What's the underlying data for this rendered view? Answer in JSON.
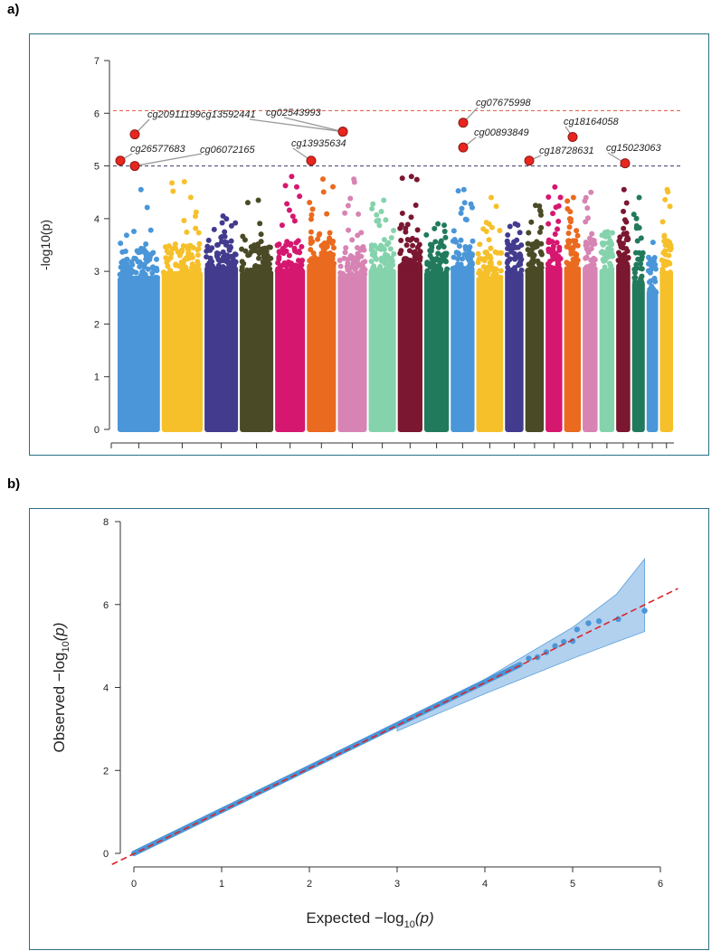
{
  "panels": [
    {
      "tag": "a)"
    },
    {
      "tag": "b)"
    }
  ],
  "chart_data": [
    {
      "type": "scatter",
      "subtype": "manhattan",
      "ylabel": "-log10(p)",
      "xlabel": "",
      "ylim": [
        0,
        7
      ],
      "yticks": [
        "0",
        "1",
        "2",
        "3",
        "4",
        "5",
        "6",
        "7"
      ],
      "thresholds": [
        {
          "y": 6.05,
          "color": "#d9573e",
          "style": "dashed"
        },
        {
          "y": 5.0,
          "color": "#3d3d6b",
          "style": "dashed"
        }
      ],
      "chromosomes": [
        {
          "color": "#4a96d8",
          "base": 3.15,
          "top": 4.55
        },
        {
          "color": "#f6c02a",
          "base": 3.25,
          "top": 4.7
        },
        {
          "color": "#423b8e",
          "base": 3.35,
          "top": 4.05
        },
        {
          "color": "#4a4a26",
          "base": 3.25,
          "top": 4.35
        },
        {
          "color": "#d6176f",
          "base": 3.3,
          "top": 4.8
        },
        {
          "color": "#ea6a1f",
          "base": 3.4,
          "top": 4.75
        },
        {
          "color": "#d784b4",
          "base": 3.2,
          "top": 4.75
        },
        {
          "color": "#85d3ad",
          "base": 3.3,
          "top": 4.35
        },
        {
          "color": "#7b1730",
          "base": 3.4,
          "top": 4.8
        },
        {
          "color": "#227a5c",
          "base": 3.25,
          "top": 3.9
        },
        {
          "color": "#4a96d8",
          "base": 3.35,
          "top": 4.55
        },
        {
          "color": "#f6c02a",
          "base": 3.15,
          "top": 4.4
        },
        {
          "color": "#423b8e",
          "base": 3.25,
          "top": 3.9
        },
        {
          "color": "#4a4a26",
          "base": 3.3,
          "top": 4.25
        },
        {
          "color": "#d6176f",
          "base": 3.35,
          "top": 4.6
        },
        {
          "color": "#ea6a1f",
          "base": 3.35,
          "top": 4.4
        },
        {
          "color": "#d784b4",
          "base": 3.35,
          "top": 4.5
        },
        {
          "color": "#85d3ad",
          "base": 3.3,
          "top": 3.75
        },
        {
          "color": "#7b1730",
          "base": 3.4,
          "top": 4.55
        },
        {
          "color": "#227a5c",
          "base": 3.05,
          "top": 4.4
        },
        {
          "color": "#4a96d8",
          "base": 2.9,
          "top": 3.55
        },
        {
          "color": "#f6c02a",
          "base": 3.25,
          "top": 4.55
        }
      ],
      "hits": [
        {
          "label": "cg20911199",
          "chr": 1,
          "y": 5.6
        },
        {
          "label": "cg26577683",
          "chr": 1,
          "y": 5.1
        },
        {
          "label": "cg06072165",
          "chr": 1,
          "y": 5.0
        },
        {
          "label": "cg13592441",
          "chr": 6,
          "y": 5.65
        },
        {
          "label": "cg02543993",
          "chr": 6,
          "y": 5.65
        },
        {
          "label": "cg13935634",
          "chr": 6,
          "y": 5.1
        },
        {
          "label": "cg07675998",
          "chr": 11,
          "y": 5.82
        },
        {
          "label": "cg00893849",
          "chr": 11,
          "y": 5.35
        },
        {
          "label": "cg18728631",
          "chr": 14,
          "y": 5.1
        },
        {
          "label": "cg18164058",
          "chr": 16,
          "y": 5.55
        },
        {
          "label": "cg15023063",
          "chr": 18,
          "y": 5.05
        }
      ]
    },
    {
      "type": "scatter",
      "subtype": "qq",
      "xlabel_main": "Expected",
      "xlabel_func": "−log",
      "xlabel_sub": "10",
      "xlabel_arg": "(p)",
      "ylabel_main": "Observed",
      "ylabel_func": "−log",
      "ylabel_sub": "10",
      "ylabel_arg": "(p)",
      "xlim": [
        0,
        6
      ],
      "ylim": [
        0,
        8
      ],
      "xticks": [
        "0",
        "1",
        "2",
        "3",
        "4",
        "5",
        "6"
      ],
      "yticks": [
        "0",
        "2",
        "4",
        "6",
        "8"
      ],
      "point_color": "#4a96d8",
      "band_color": "#a9cdee",
      "reference_line": {
        "color": "#d9252b",
        "style": "dashed",
        "slope": 1
      },
      "upper_tail": [
        [
          4.5,
          4.7
        ],
        [
          4.6,
          4.73
        ],
        [
          4.7,
          4.85
        ],
        [
          4.8,
          5.0
        ],
        [
          4.9,
          5.1
        ],
        [
          5.0,
          5.12
        ],
        [
          5.05,
          5.4
        ],
        [
          5.18,
          5.55
        ],
        [
          5.3,
          5.6
        ],
        [
          5.52,
          5.65
        ],
        [
          5.82,
          5.85
        ]
      ],
      "band": {
        "x": [
          3.0,
          4.0,
          5.0,
          5.5,
          5.82
        ],
        "lower": [
          2.95,
          3.85,
          4.7,
          5.1,
          5.35
        ],
        "upper": [
          3.06,
          4.2,
          5.45,
          6.25,
          7.1
        ]
      }
    }
  ]
}
